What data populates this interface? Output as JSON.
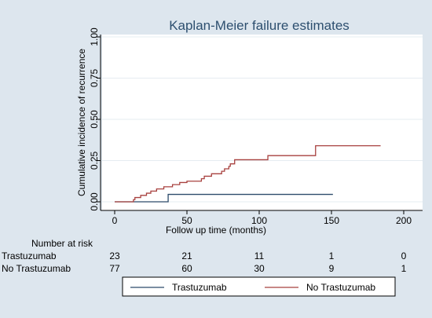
{
  "chart_data": {
    "type": "line",
    "title": "Kaplan-Meier failure estimates",
    "xlabel": "Follow up time (months)",
    "ylabel": "Cumulative incidence of recurrence",
    "xlim": [
      0,
      200
    ],
    "ylim": [
      0,
      1
    ],
    "xticks": [
      0,
      50,
      100,
      150,
      200
    ],
    "yticks": [
      0,
      0.25,
      0.5,
      0.75,
      1
    ],
    "ytick_labels": [
      "0.00",
      "0.25",
      "0.50",
      "0.75",
      "1.00"
    ],
    "grid": true,
    "legend_position": "bottom",
    "series": [
      {
        "name": "Trastuzumab",
        "color": "#2c4b6b",
        "step_points": [
          [
            0,
            0
          ],
          [
            37,
            0
          ],
          [
            37,
            0.045
          ],
          [
            151,
            0.045
          ]
        ]
      },
      {
        "name": "No Trastuzumab",
        "color": "#a8413f",
        "step_points": [
          [
            0,
            0
          ],
          [
            13,
            0
          ],
          [
            13,
            0.013
          ],
          [
            14,
            0.013
          ],
          [
            14,
            0.026
          ],
          [
            18,
            0.026
          ],
          [
            18,
            0.039
          ],
          [
            22,
            0.039
          ],
          [
            22,
            0.052
          ],
          [
            25,
            0.052
          ],
          [
            25,
            0.065
          ],
          [
            29,
            0.065
          ],
          [
            29,
            0.078
          ],
          [
            34,
            0.078
          ],
          [
            34,
            0.091
          ],
          [
            40,
            0.091
          ],
          [
            40,
            0.104
          ],
          [
            45,
            0.104
          ],
          [
            45,
            0.117
          ],
          [
            50,
            0.117
          ],
          [
            50,
            0.125
          ],
          [
            60,
            0.125
          ],
          [
            60,
            0.14
          ],
          [
            62,
            0.14
          ],
          [
            62,
            0.155
          ],
          [
            67,
            0.155
          ],
          [
            67,
            0.17
          ],
          [
            74,
            0.17
          ],
          [
            74,
            0.185
          ],
          [
            76,
            0.185
          ],
          [
            76,
            0.2
          ],
          [
            79,
            0.2
          ],
          [
            79,
            0.215
          ],
          [
            80,
            0.215
          ],
          [
            80,
            0.23
          ],
          [
            83,
            0.23
          ],
          [
            83,
            0.255
          ],
          [
            106,
            0.255
          ],
          [
            106,
            0.28
          ],
          [
            139,
            0.28
          ],
          [
            139,
            0.34
          ],
          [
            184,
            0.34
          ]
        ]
      }
    ],
    "risk_table": {
      "title": "Number at risk",
      "rows": [
        {
          "label": "Trastuzumab",
          "values": [
            23,
            21,
            11,
            1,
            0
          ]
        },
        {
          "label": "No Trastuzumab",
          "values": [
            77,
            60,
            30,
            9,
            1
          ]
        }
      ]
    }
  },
  "colors": {
    "outer_background": "#dde6ee",
    "plot_background": "#ffffff",
    "grid": "#e6ecf1",
    "axis": "#000000",
    "title": "#2d4f6f"
  }
}
